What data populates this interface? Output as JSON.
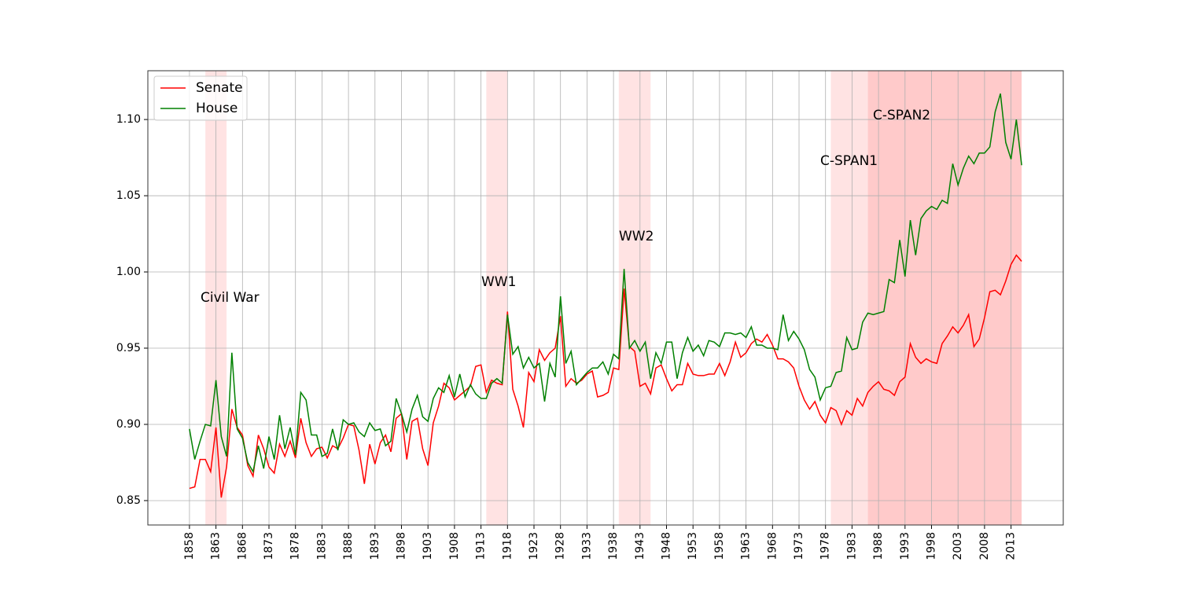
{
  "chart_data": {
    "type": "line",
    "x": [
      1858,
      1859,
      1860,
      1861,
      1862,
      1863,
      1864,
      1865,
      1866,
      1867,
      1868,
      1869,
      1870,
      1871,
      1872,
      1873,
      1874,
      1875,
      1876,
      1877,
      1878,
      1879,
      1880,
      1881,
      1882,
      1883,
      1884,
      1885,
      1886,
      1887,
      1888,
      1889,
      1890,
      1891,
      1892,
      1893,
      1894,
      1895,
      1896,
      1897,
      1898,
      1899,
      1900,
      1901,
      1902,
      1903,
      1904,
      1905,
      1906,
      1907,
      1908,
      1909,
      1910,
      1911,
      1912,
      1913,
      1914,
      1915,
      1916,
      1917,
      1918,
      1919,
      1920,
      1921,
      1922,
      1923,
      1924,
      1925,
      1926,
      1927,
      1928,
      1929,
      1930,
      1931,
      1932,
      1933,
      1934,
      1935,
      1936,
      1937,
      1938,
      1939,
      1940,
      1941,
      1942,
      1943,
      1944,
      1945,
      1946,
      1947,
      1948,
      1949,
      1950,
      1951,
      1952,
      1953,
      1954,
      1955,
      1956,
      1957,
      1958,
      1959,
      1960,
      1961,
      1962,
      1963,
      1964,
      1965,
      1966,
      1967,
      1968,
      1969,
      1970,
      1971,
      1972,
      1973,
      1974,
      1975,
      1976,
      1977,
      1978,
      1979,
      1980,
      1981,
      1982,
      1983,
      1984,
      1985,
      1986,
      1987,
      1988,
      1989,
      1990,
      1991,
      1992,
      1993,
      1994,
      1995,
      1996,
      1997,
      1998,
      1999,
      2000,
      2001,
      2002,
      2003,
      2004,
      2005,
      2006,
      2007,
      2008,
      2009,
      2010,
      2011,
      2012,
      2013,
      2014,
      2015
    ],
    "series": [
      {
        "name": "Senate",
        "color": "#ff0000",
        "values": [
          0.858,
          0.859,
          0.877,
          0.877,
          0.869,
          0.898,
          0.852,
          0.872,
          0.91,
          0.898,
          0.893,
          0.873,
          0.866,
          0.893,
          0.884,
          0.872,
          0.868,
          0.887,
          0.879,
          0.889,
          0.878,
          0.904,
          0.888,
          0.879,
          0.884,
          0.885,
          0.878,
          0.886,
          0.884,
          0.891,
          0.9,
          0.899,
          0.883,
          0.861,
          0.887,
          0.874,
          0.888,
          0.893,
          0.882,
          0.904,
          0.907,
          0.877,
          0.902,
          0.904,
          0.884,
          0.873,
          0.901,
          0.912,
          0.927,
          0.924,
          0.916,
          0.919,
          0.922,
          0.925,
          0.938,
          0.939,
          0.921,
          0.929,
          0.927,
          0.926,
          0.974,
          0.923,
          0.912,
          0.898,
          0.934,
          0.928,
          0.949,
          0.942,
          0.947,
          0.95,
          0.971,
          0.925,
          0.93,
          0.927,
          0.929,
          0.933,
          0.935,
          0.918,
          0.919,
          0.921,
          0.937,
          0.936,
          0.989,
          0.951,
          0.948,
          0.925,
          0.927,
          0.92,
          0.937,
          0.939,
          0.93,
          0.922,
          0.926,
          0.926,
          0.94,
          0.933,
          0.932,
          0.932,
          0.933,
          0.933,
          0.94,
          0.932,
          0.941,
          0.954,
          0.944,
          0.947,
          0.953,
          0.956,
          0.954,
          0.959,
          0.952,
          0.943,
          0.943,
          0.941,
          0.937,
          0.925,
          0.916,
          0.91,
          0.915,
          0.906,
          0.901,
          0.911,
          0.909,
          0.9,
          0.909,
          0.906,
          0.917,
          0.912,
          0.921,
          0.925,
          0.928,
          0.923,
          0.922,
          0.919,
          0.928,
          0.931,
          0.953,
          0.944,
          0.94,
          0.943,
          0.941,
          0.94,
          0.953,
          0.958,
          0.964,
          0.96,
          0.965,
          0.972,
          0.951,
          0.956,
          0.97,
          0.987,
          0.988,
          0.985,
          0.994,
          1.005,
          1.011,
          1.007
        ]
      },
      {
        "name": "House",
        "color": "#008000",
        "values": [
          0.897,
          0.877,
          0.889,
          0.9,
          0.899,
          0.929,
          0.892,
          0.879,
          0.947,
          0.897,
          0.891,
          0.875,
          0.869,
          0.886,
          0.871,
          0.892,
          0.877,
          0.906,
          0.884,
          0.898,
          0.88,
          0.921,
          0.916,
          0.893,
          0.893,
          0.879,
          0.881,
          0.897,
          0.883,
          0.903,
          0.9,
          0.901,
          0.895,
          0.892,
          0.901,
          0.896,
          0.897,
          0.886,
          0.889,
          0.917,
          0.907,
          0.895,
          0.91,
          0.919,
          0.905,
          0.902,
          0.917,
          0.924,
          0.921,
          0.932,
          0.918,
          0.933,
          0.918,
          0.926,
          0.92,
          0.917,
          0.917,
          0.927,
          0.93,
          0.927,
          0.972,
          0.946,
          0.951,
          0.937,
          0.944,
          0.937,
          0.94,
          0.915,
          0.94,
          0.931,
          0.984,
          0.94,
          0.948,
          0.926,
          0.93,
          0.934,
          0.937,
          0.937,
          0.941,
          0.933,
          0.946,
          0.943,
          1.002,
          0.95,
          0.955,
          0.948,
          0.954,
          0.93,
          0.947,
          0.94,
          0.954,
          0.954,
          0.93,
          0.947,
          0.957,
          0.948,
          0.952,
          0.945,
          0.955,
          0.954,
          0.951,
          0.96,
          0.96,
          0.959,
          0.96,
          0.957,
          0.964,
          0.952,
          0.952,
          0.95,
          0.95,
          0.949,
          0.972,
          0.955,
          0.961,
          0.956,
          0.949,
          0.936,
          0.931,
          0.916,
          0.924,
          0.925,
          0.934,
          0.935,
          0.957,
          0.949,
          0.95,
          0.967,
          0.973,
          0.972,
          0.973,
          0.974,
          0.995,
          0.993,
          1.021,
          0.997,
          1.034,
          1.011,
          1.035,
          1.04,
          1.043,
          1.041,
          1.047,
          1.045,
          1.071,
          1.057,
          1.068,
          1.076,
          1.071,
          1.078,
          1.078,
          1.082,
          1.105,
          1.117,
          1.085,
          1.074,
          1.1,
          1.07
        ]
      }
    ],
    "spans": [
      {
        "label": "Civil War",
        "start": 1861,
        "end": 1865
      },
      {
        "label": "WW1",
        "start": 1914,
        "end": 1918
      },
      {
        "label": "WW2",
        "start": 1939,
        "end": 1945
      },
      {
        "label": "C-SPAN1",
        "start": 1979,
        "end": 2015
      },
      {
        "label": "C-SPAN2",
        "start": 1986,
        "end": 2015
      }
    ],
    "span_color": "#ff0000",
    "xlim": [
      1850.15,
      2022.85
    ],
    "ylim": [
      0.834,
      1.132
    ],
    "xticks": [
      1858,
      1863,
      1868,
      1873,
      1878,
      1883,
      1888,
      1893,
      1898,
      1903,
      1908,
      1913,
      1918,
      1923,
      1928,
      1933,
      1938,
      1943,
      1948,
      1953,
      1958,
      1963,
      1968,
      1973,
      1978,
      1983,
      1988,
      1993,
      1998,
      2003,
      2008,
      2013
    ],
    "yticks": [
      0.85,
      {
        "value": 0.9,
        "label": "0.90"
      },
      0.95,
      {
        "value": 1.0,
        "label": "1.00"
      },
      1.05,
      {
        "value": 1.1,
        "label": "1.10"
      }
    ],
    "grid": true,
    "legend": "upper left"
  }
}
